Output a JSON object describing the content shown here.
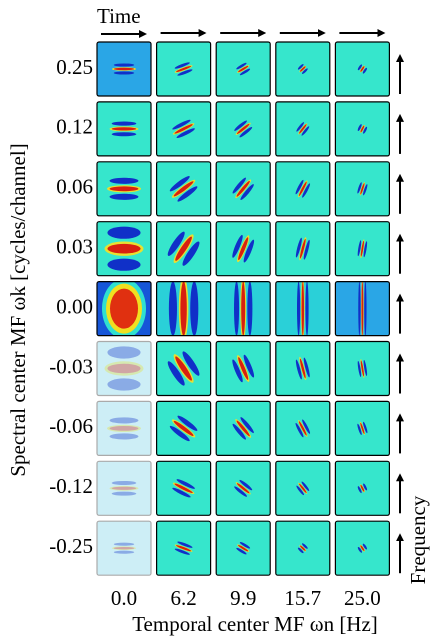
{
  "axis_labels": {
    "top": "Time",
    "left": "Spectral center MF ωk [cycles/channel]",
    "bottom": "Temporal center MF ωn [Hz]",
    "right": "Frequency"
  },
  "rows": [
    "0.25",
    "0.12",
    "0.06",
    "0.03",
    "0.00",
    "-0.03",
    "-0.06",
    "-0.12",
    "-0.25"
  ],
  "columns": [
    "0.0",
    "6.2",
    "9.9",
    "15.7",
    "25.0"
  ]
}
